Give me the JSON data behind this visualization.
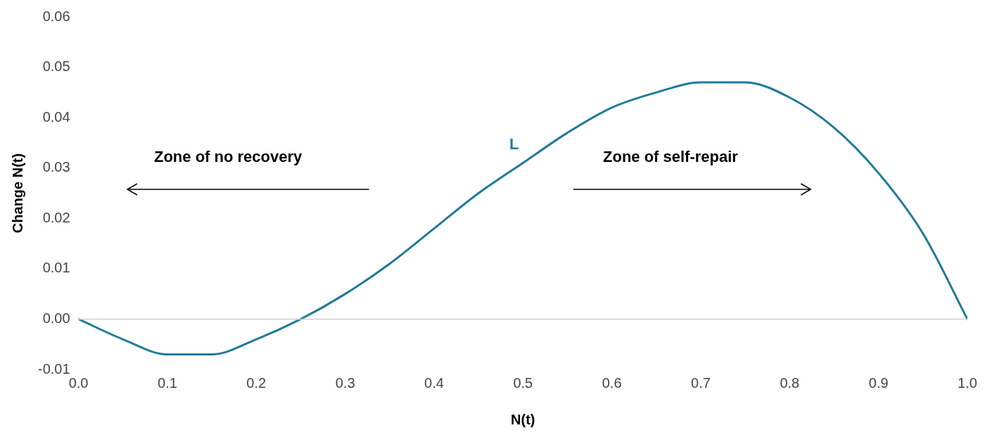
{
  "chart_data": {
    "type": "line",
    "xlabel": "N(t)",
    "ylabel": "Change N(t)",
    "x": [
      0,
      0.05,
      0.1,
      0.15,
      0.2,
      0.25,
      0.3,
      0.35,
      0.4,
      0.45,
      0.5,
      0.55,
      0.6,
      0.65,
      0.7,
      0.75,
      0.8,
      0.85,
      0.9,
      0.95,
      1.0
    ],
    "series": [
      {
        "color": "#1f7a99",
        "values": [
          0,
          -0.004,
          -0.007,
          -0.007,
          -0.004,
          0,
          0.005,
          0.011,
          0.018,
          0.025,
          0.031,
          0.037,
          0.042,
          0.045,
          0.047,
          0.047,
          0.044,
          0.038,
          0.029,
          0.017,
          0
        ]
      }
    ],
    "xlim": [
      0,
      1
    ],
    "ylim": [
      -0.01,
      0.06
    ],
    "xticks": [
      {
        "value": 0,
        "label": "0.0"
      },
      {
        "value": 0.1,
        "label": "0.1"
      },
      {
        "value": 0.2,
        "label": "0.2"
      },
      {
        "value": 0.3,
        "label": "0.3"
      },
      {
        "value": 0.4,
        "label": "0.4"
      },
      {
        "value": 0.5,
        "label": "0.5"
      },
      {
        "value": 0.6,
        "label": "0.6"
      },
      {
        "value": 0.7,
        "label": "0.7"
      },
      {
        "value": 0.8,
        "label": "0.8"
      },
      {
        "value": 0.9,
        "label": "0.9"
      },
      {
        "value": 1,
        "label": "1.0"
      }
    ],
    "yticks": [
      {
        "value": -0.01,
        "label": "-0.01"
      },
      {
        "value": 0,
        "label": "0.00"
      },
      {
        "value": 0.01,
        "label": "0.01"
      },
      {
        "value": 0.02,
        "label": "0.02"
      },
      {
        "value": 0.03,
        "label": "0.03"
      },
      {
        "value": 0.04,
        "label": "0.04"
      },
      {
        "value": 0.05,
        "label": "0.05"
      },
      {
        "value": 0.06,
        "label": "0.06"
      }
    ],
    "annotations": [
      "L",
      "Zone of no recovery",
      "Zone of self-repair"
    ],
    "ref_lines": [
      {
        "axis": "y",
        "value": 0,
        "color": "#d0d0d0"
      }
    ],
    "grid": false,
    "legend": false,
    "marker": "none",
    "line_style": "solid"
  }
}
